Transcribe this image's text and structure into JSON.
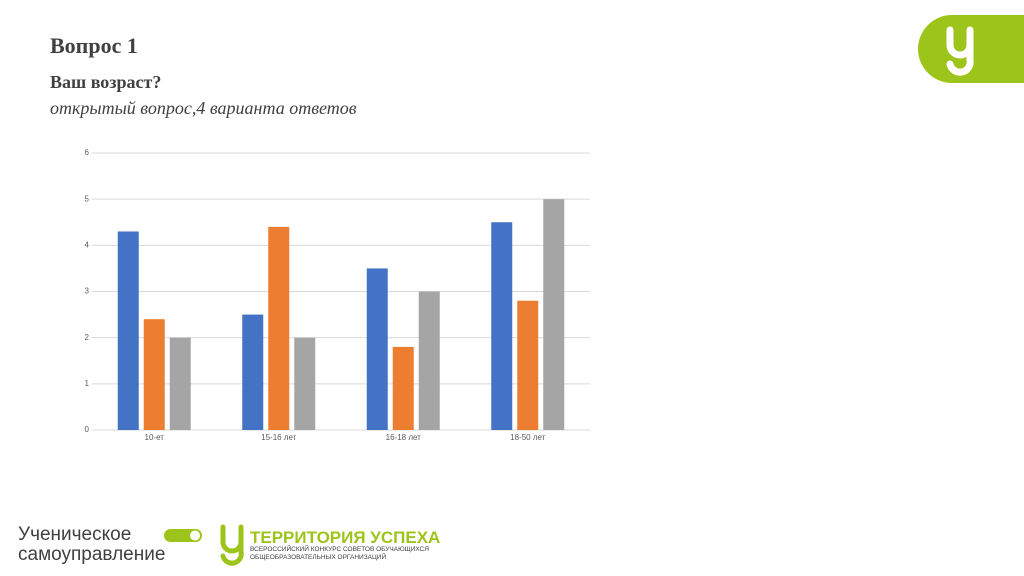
{
  "slide": {
    "title": "Вопрос 1",
    "question": "Ваш возраст?",
    "note": "открытый вопрос,4 варианта ответов"
  },
  "chart_data": {
    "type": "bar",
    "categories": [
      "10-ет",
      "15-16 лет",
      "16-18 лет",
      "18-50 лет"
    ],
    "series": [
      {
        "color": "#4472c4",
        "values": [
          4.3,
          2.5,
          3.5,
          4.5
        ]
      },
      {
        "color": "#ed7d31",
        "values": [
          2.4,
          4.4,
          1.8,
          2.8
        ]
      },
      {
        "color": "#a5a5a5",
        "values": [
          2,
          2,
          3,
          5
        ]
      }
    ],
    "ylim": [
      0,
      6
    ],
    "yticks": [
      0,
      1,
      2,
      3,
      4,
      5,
      6
    ],
    "grid": true
  },
  "footer": {
    "logo1": [
      "Ученическое",
      "самоуправление"
    ],
    "logo2": {
      "name": "ТЕРРИТОРИЯ УСПЕХА",
      "lines": [
        "ВСЕРОССИЙСКИЙ КОНКУРС СОВЕТОВ ОБУЧАЮЩИХСЯ",
        "ОБЩЕОБРАЗОВАТЕЛЬНЫХ ОРГАНИЗАЦИЙ"
      ]
    }
  }
}
